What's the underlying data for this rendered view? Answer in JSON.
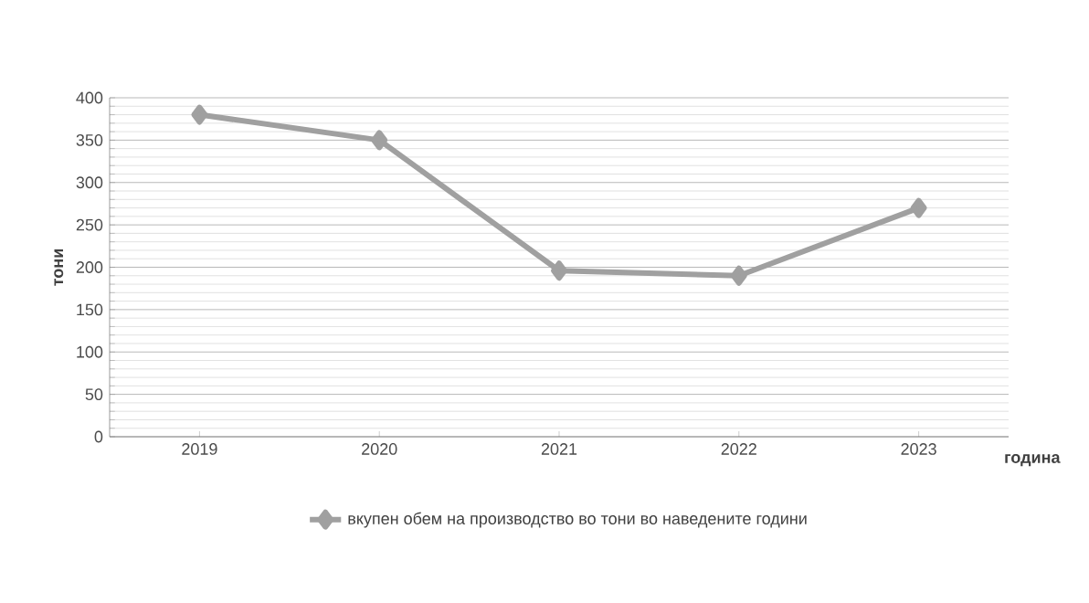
{
  "chart_data": {
    "type": "line",
    "xlabel": "година",
    "ylabel": "тони",
    "categories": [
      "2019",
      "2020",
      "2021",
      "2022",
      "2023"
    ],
    "series": [
      {
        "name": "вкупен обем на производство во тони во наведените години",
        "color": "#a0a0a0",
        "values": [
          380,
          350,
          196,
          190,
          270
        ]
      }
    ],
    "ylim": [
      0,
      400
    ],
    "yticks": [
      0,
      50,
      100,
      150,
      200,
      250,
      300,
      350,
      400
    ],
    "grid": "y",
    "legend": "bottom",
    "marker": "diamond",
    "line_style": "solid"
  }
}
